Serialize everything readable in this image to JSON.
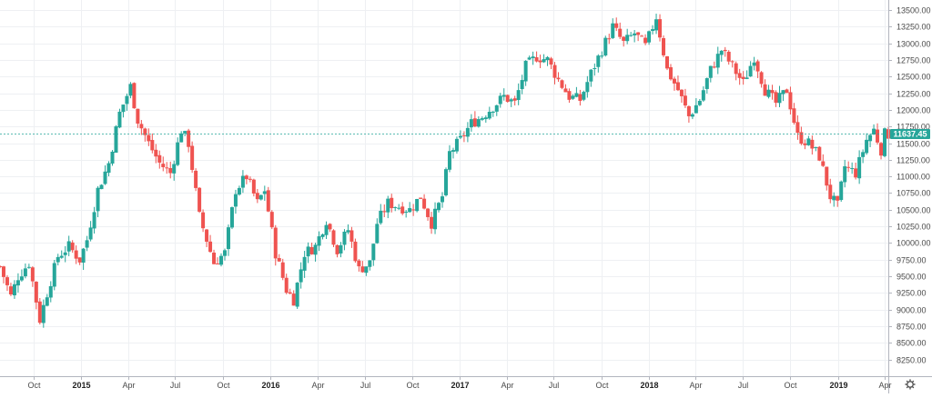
{
  "chart_data": {
    "type": "candlestick",
    "title": "",
    "xlabel": "",
    "ylabel": "",
    "ylim": [
      8000,
      13650
    ],
    "grid": true,
    "legend": "none",
    "colors": {
      "up": "#26a69a",
      "down": "#ef5350",
      "grid": "#eef0f3",
      "axis": "#b2b5be",
      "last_price_line": "#26a69a",
      "background": "#ffffff"
    },
    "y_ticks": [
      8250,
      8500,
      8750,
      9000,
      9250,
      9500,
      9750,
      10000,
      10250,
      10500,
      10750,
      11000,
      11250,
      11500,
      11750,
      12000,
      12250,
      12500,
      12750,
      13000,
      13250,
      13500
    ],
    "y_tick_labels": [
      "8250.00",
      "8500.00",
      "8750.00",
      "9000.00",
      "9250.00",
      "9500.00",
      "9750.00",
      "10000.00",
      "10250.00",
      "10500.00",
      "10750.00",
      "11000.00",
      "11250.00",
      "11500.00",
      "11750.00",
      "12000.00",
      "12250.00",
      "12500.00",
      "12750.00",
      "13000.00",
      "13250.00",
      "13500.00"
    ],
    "x_ticks": [
      {
        "label": "Oct",
        "date": "2014-10-01",
        "bold": false
      },
      {
        "label": "2015",
        "date": "2015-01-01",
        "bold": true
      },
      {
        "label": "Apr",
        "date": "2015-04-01",
        "bold": false
      },
      {
        "label": "Jul",
        "date": "2015-07-01",
        "bold": false
      },
      {
        "label": "Oct",
        "date": "2015-10-01",
        "bold": false
      },
      {
        "label": "2016",
        "date": "2016-01-01",
        "bold": true
      },
      {
        "label": "Apr",
        "date": "2016-04-01",
        "bold": false
      },
      {
        "label": "Jul",
        "date": "2016-07-01",
        "bold": false
      },
      {
        "label": "Oct",
        "date": "2016-10-01",
        "bold": false
      },
      {
        "label": "2017",
        "date": "2017-01-01",
        "bold": true
      },
      {
        "label": "Apr",
        "date": "2017-04-01",
        "bold": false
      },
      {
        "label": "Jul",
        "date": "2017-07-01",
        "bold": false
      },
      {
        "label": "Oct",
        "date": "2017-10-01",
        "bold": false
      },
      {
        "label": "2018",
        "date": "2018-01-01",
        "bold": true
      },
      {
        "label": "Apr",
        "date": "2018-04-01",
        "bold": false
      },
      {
        "label": "Jul",
        "date": "2018-07-01",
        "bold": false
      },
      {
        "label": "Oct",
        "date": "2018-10-01",
        "bold": false
      },
      {
        "label": "2019",
        "date": "2019-01-01",
        "bold": true
      },
      {
        "label": "Apr",
        "date": "2019-04-01",
        "bold": false
      }
    ],
    "x_range": [
      "2014-07-28",
      "2019-04-08"
    ],
    "last_price": 11637.45,
    "last_price_label": "11637.45",
    "close_path": [
      [
        "2014-07-28",
        9650
      ],
      [
        "2014-08-18",
        9200
      ],
      [
        "2014-09-01",
        9500
      ],
      [
        "2014-09-22",
        9700
      ],
      [
        "2014-10-13",
        8850
      ],
      [
        "2014-10-27",
        9250
      ],
      [
        "2014-11-17",
        9800
      ],
      [
        "2014-12-08",
        9950
      ],
      [
        "2014-12-29",
        9750
      ],
      [
        "2015-01-12",
        10050
      ],
      [
        "2015-02-02",
        10800
      ],
      [
        "2015-02-23",
        11200
      ],
      [
        "2015-03-16",
        11950
      ],
      [
        "2015-04-06",
        12350
      ],
      [
        "2015-04-20",
        11850
      ],
      [
        "2015-05-11",
        11500
      ],
      [
        "2015-06-01",
        11200
      ],
      [
        "2015-06-22",
        11050
      ],
      [
        "2015-07-13",
        11700
      ],
      [
        "2015-07-27",
        11500
      ],
      [
        "2015-08-17",
        10400
      ],
      [
        "2015-08-31",
        10050
      ],
      [
        "2015-09-14",
        9700
      ],
      [
        "2015-10-05",
        9850
      ],
      [
        "2015-10-26",
        10800
      ],
      [
        "2015-11-16",
        11000
      ],
      [
        "2015-12-07",
        10600
      ],
      [
        "2015-12-21",
        10800
      ],
      [
        "2016-01-11",
        9850
      ],
      [
        "2016-02-01",
        9300
      ],
      [
        "2016-02-15",
        9150
      ],
      [
        "2016-03-07",
        9850
      ],
      [
        "2016-03-28",
        9950
      ],
      [
        "2016-04-18",
        10350
      ],
      [
        "2016-05-09",
        9900
      ],
      [
        "2016-05-30",
        10200
      ],
      [
        "2016-06-20",
        9600
      ],
      [
        "2016-07-11",
        9700
      ],
      [
        "2016-07-25",
        10300
      ],
      [
        "2016-08-15",
        10600
      ],
      [
        "2016-09-05",
        10550
      ],
      [
        "2016-09-26",
        10500
      ],
      [
        "2016-10-17",
        10700
      ],
      [
        "2016-11-07",
        10300
      ],
      [
        "2016-11-28",
        10700
      ],
      [
        "2016-12-12",
        11350
      ],
      [
        "2017-01-02",
        11550
      ],
      [
        "2017-01-23",
        11800
      ],
      [
        "2017-02-13",
        11900
      ],
      [
        "2017-03-06",
        12050
      ],
      [
        "2017-03-27",
        12200
      ],
      [
        "2017-04-17",
        12100
      ],
      [
        "2017-05-08",
        12650
      ],
      [
        "2017-05-29",
        12800
      ],
      [
        "2017-06-19",
        12750
      ],
      [
        "2017-07-10",
        12450
      ],
      [
        "2017-07-31",
        12200
      ],
      [
        "2017-08-21",
        12150
      ],
      [
        "2017-09-11",
        12550
      ],
      [
        "2017-10-02",
        12900
      ],
      [
        "2017-10-23",
        13250
      ],
      [
        "2017-11-13",
        13000
      ],
      [
        "2017-12-04",
        13150
      ],
      [
        "2017-12-25",
        12950
      ],
      [
        "2018-01-15",
        13400
      ],
      [
        "2018-02-05",
        12600
      ],
      [
        "2018-02-26",
        12300
      ],
      [
        "2018-03-19",
        11900
      ],
      [
        "2018-04-09",
        12150
      ],
      [
        "2018-04-30",
        12600
      ],
      [
        "2018-05-21",
        12900
      ],
      [
        "2018-06-11",
        12650
      ],
      [
        "2018-07-02",
        12400
      ],
      [
        "2018-07-23",
        12800
      ],
      [
        "2018-08-13",
        12300
      ],
      [
        "2018-09-03",
        12100
      ],
      [
        "2018-09-24",
        12300
      ],
      [
        "2018-10-15",
        11600
      ],
      [
        "2018-11-05",
        11500
      ],
      [
        "2018-11-26",
        11300
      ],
      [
        "2018-12-17",
        10700
      ],
      [
        "2018-12-31",
        10550
      ],
      [
        "2019-01-14",
        11150
      ],
      [
        "2019-02-04",
        11050
      ],
      [
        "2019-02-25",
        11550
      ],
      [
        "2019-03-11",
        11700
      ],
      [
        "2019-03-25",
        11400
      ],
      [
        "2019-04-01",
        11637
      ]
    ]
  },
  "chrome": {
    "settings_icon": "gear-icon"
  }
}
